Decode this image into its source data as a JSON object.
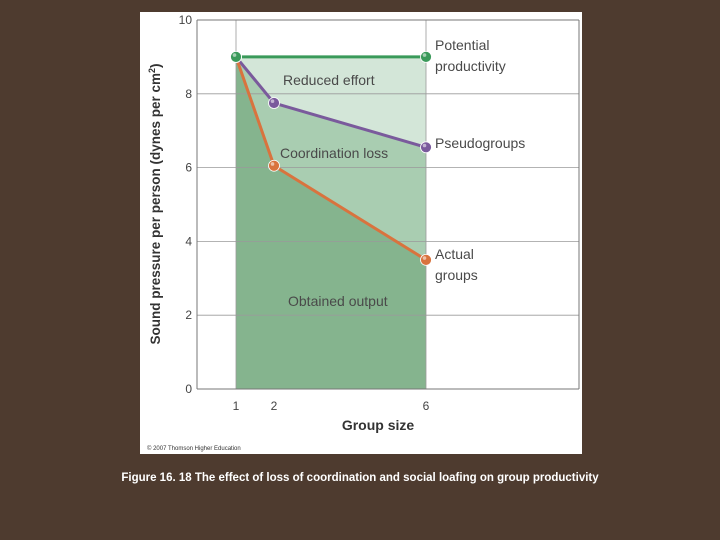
{
  "colors": {
    "background": "#4e3b2f",
    "panel": "#ffffff",
    "obtained_region": "#85b48e",
    "reduced_region": "#d3e6d8",
    "coordination_region": "#a9cdb1",
    "potential": "#3a9a5a",
    "pseudogroups": "#7a5a9c",
    "actual": "#d9733e"
  },
  "chart_data": {
    "type": "line",
    "ylabel": "Sound pressure per person (dynes per cm²)",
    "ylabel_main": "Sound pressure per person (dynes per cm",
    "ylabel_sup": "2",
    "ylabel_end": ")",
    "xlabel": "Group size",
    "x_ticks": [
      1,
      2,
      6
    ],
    "y_ticks": [
      0,
      2,
      4,
      6,
      8,
      10
    ],
    "ylim": [
      0,
      10
    ],
    "grid": true,
    "series": [
      {
        "name": "Potential productivity",
        "label_lines": [
          "Potential",
          "productivity"
        ],
        "color": "#3a9a5a",
        "x": [
          1,
          6
        ],
        "y": [
          9.0,
          9.0
        ]
      },
      {
        "name": "Pseudogroups",
        "label_lines": [
          "Pseudogroups"
        ],
        "color": "#7a5a9c",
        "x": [
          1,
          2,
          6
        ],
        "y": [
          9.0,
          7.75,
          6.55
        ]
      },
      {
        "name": "Actual groups",
        "label_lines": [
          "Actual",
          "groups"
        ],
        "color": "#d9733e",
        "x": [
          1,
          2,
          6
        ],
        "y": [
          9.0,
          6.05,
          3.5
        ]
      }
    ],
    "annotations": {
      "reduced_effort": "Reduced effort",
      "coordination_loss": "Coordination loss",
      "obtained_output": "Obtained output"
    },
    "copyright": "© 2007 Thomson Higher Education"
  },
  "caption": {
    "figure_number": "Figure 16. 18",
    "text": "The effect of loss of coordination and social loafing on group productivity"
  }
}
